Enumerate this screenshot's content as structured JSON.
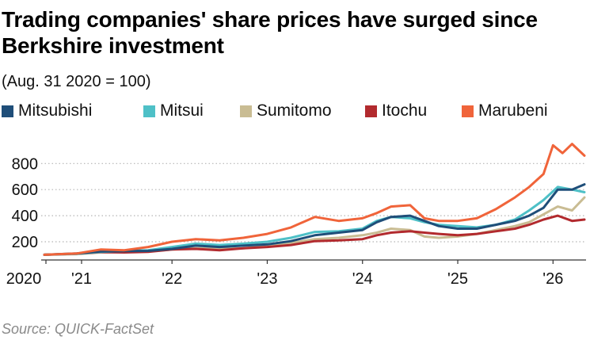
{
  "title": "Trading companies' share prices have surged since Berkshire investment",
  "subtitle": "(Aug. 31 2020 = 100)",
  "source": "Source: QUICK-FactSet",
  "chart_data": {
    "type": "line",
    "ylim": [
      60,
      960
    ],
    "yticks": [
      200,
      400,
      600,
      800
    ],
    "grid": "horizontal dotted",
    "legend_position": "top",
    "xlim": [
      2020.66,
      2026.33
    ],
    "xticks": [
      {
        "label": "2020",
        "x": 2020.0
      },
      {
        "label": "'21",
        "x": 2021.0
      },
      {
        "label": "'22",
        "x": 2022.0
      },
      {
        "label": "'23",
        "x": 2023.0
      },
      {
        "label": "'24",
        "x": 2024.0
      },
      {
        "label": "'25",
        "x": 2025.0
      },
      {
        "label": "'26",
        "x": 2026.0
      }
    ],
    "series": [
      {
        "name": "Mitsubishi",
        "color": "#1f4e79",
        "points": [
          [
            2020.66,
            100
          ],
          [
            2021.0,
            110
          ],
          [
            2021.25,
            125
          ],
          [
            2021.5,
            128
          ],
          [
            2021.75,
            130
          ],
          [
            2022.0,
            145
          ],
          [
            2022.25,
            170
          ],
          [
            2022.5,
            160
          ],
          [
            2022.75,
            170
          ],
          [
            2023.0,
            180
          ],
          [
            2023.25,
            205
          ],
          [
            2023.5,
            250
          ],
          [
            2023.75,
            270
          ],
          [
            2024.0,
            290
          ],
          [
            2024.15,
            350
          ],
          [
            2024.3,
            390
          ],
          [
            2024.5,
            400
          ],
          [
            2024.65,
            360
          ],
          [
            2024.8,
            320
          ],
          [
            2025.0,
            300
          ],
          [
            2025.2,
            300
          ],
          [
            2025.4,
            330
          ],
          [
            2025.6,
            360
          ],
          [
            2025.75,
            400
          ],
          [
            2025.9,
            460
          ],
          [
            2026.05,
            600
          ],
          [
            2026.2,
            600
          ],
          [
            2026.33,
            640
          ]
        ]
      },
      {
        "name": "Mitsui",
        "color": "#4ec0c7",
        "points": [
          [
            2020.66,
            100
          ],
          [
            2021.0,
            108
          ],
          [
            2021.25,
            122
          ],
          [
            2021.5,
            130
          ],
          [
            2021.75,
            135
          ],
          [
            2022.0,
            160
          ],
          [
            2022.25,
            185
          ],
          [
            2022.5,
            175
          ],
          [
            2022.75,
            185
          ],
          [
            2023.0,
            200
          ],
          [
            2023.25,
            230
          ],
          [
            2023.5,
            275
          ],
          [
            2023.75,
            280
          ],
          [
            2024.0,
            300
          ],
          [
            2024.15,
            360
          ],
          [
            2024.3,
            390
          ],
          [
            2024.5,
            380
          ],
          [
            2024.65,
            350
          ],
          [
            2024.8,
            330
          ],
          [
            2025.0,
            320
          ],
          [
            2025.2,
            310
          ],
          [
            2025.4,
            330
          ],
          [
            2025.6,
            370
          ],
          [
            2025.75,
            440
          ],
          [
            2025.9,
            520
          ],
          [
            2026.05,
            620
          ],
          [
            2026.2,
            600
          ],
          [
            2026.33,
            580
          ]
        ]
      },
      {
        "name": "Sumitomo",
        "color": "#c9bc93",
        "points": [
          [
            2020.66,
            100
          ],
          [
            2021.0,
            105
          ],
          [
            2021.25,
            118
          ],
          [
            2021.5,
            122
          ],
          [
            2021.75,
            125
          ],
          [
            2022.0,
            140
          ],
          [
            2022.25,
            150
          ],
          [
            2022.5,
            145
          ],
          [
            2022.75,
            150
          ],
          [
            2023.0,
            170
          ],
          [
            2023.25,
            190
          ],
          [
            2023.5,
            220
          ],
          [
            2023.75,
            230
          ],
          [
            2024.0,
            250
          ],
          [
            2024.15,
            270
          ],
          [
            2024.3,
            300
          ],
          [
            2024.5,
            290
          ],
          [
            2024.65,
            240
          ],
          [
            2024.8,
            230
          ],
          [
            2025.0,
            240
          ],
          [
            2025.2,
            260
          ],
          [
            2025.4,
            290
          ],
          [
            2025.6,
            320
          ],
          [
            2025.75,
            350
          ],
          [
            2025.9,
            410
          ],
          [
            2026.05,
            470
          ],
          [
            2026.2,
            440
          ],
          [
            2026.33,
            540
          ]
        ]
      },
      {
        "name": "Itochu",
        "color": "#b22a2e",
        "points": [
          [
            2020.66,
            100
          ],
          [
            2021.0,
            108
          ],
          [
            2021.25,
            120
          ],
          [
            2021.5,
            118
          ],
          [
            2021.75,
            122
          ],
          [
            2022.0,
            140
          ],
          [
            2022.25,
            145
          ],
          [
            2022.5,
            135
          ],
          [
            2022.75,
            150
          ],
          [
            2023.0,
            160
          ],
          [
            2023.25,
            175
          ],
          [
            2023.5,
            205
          ],
          [
            2023.75,
            210
          ],
          [
            2024.0,
            220
          ],
          [
            2024.15,
            250
          ],
          [
            2024.3,
            270
          ],
          [
            2024.5,
            280
          ],
          [
            2024.65,
            270
          ],
          [
            2024.8,
            260
          ],
          [
            2025.0,
            250
          ],
          [
            2025.2,
            260
          ],
          [
            2025.4,
            280
          ],
          [
            2025.6,
            300
          ],
          [
            2025.75,
            330
          ],
          [
            2025.9,
            370
          ],
          [
            2026.05,
            400
          ],
          [
            2026.2,
            360
          ],
          [
            2026.33,
            370
          ]
        ]
      },
      {
        "name": "Marubeni",
        "color": "#f0643a",
        "points": [
          [
            2020.66,
            100
          ],
          [
            2021.0,
            110
          ],
          [
            2021.25,
            140
          ],
          [
            2021.5,
            135
          ],
          [
            2021.75,
            160
          ],
          [
            2022.0,
            200
          ],
          [
            2022.25,
            220
          ],
          [
            2022.5,
            210
          ],
          [
            2022.75,
            230
          ],
          [
            2023.0,
            260
          ],
          [
            2023.25,
            310
          ],
          [
            2023.5,
            390
          ],
          [
            2023.75,
            360
          ],
          [
            2024.0,
            380
          ],
          [
            2024.15,
            420
          ],
          [
            2024.3,
            470
          ],
          [
            2024.5,
            480
          ],
          [
            2024.65,
            380
          ],
          [
            2024.8,
            360
          ],
          [
            2025.0,
            360
          ],
          [
            2025.2,
            380
          ],
          [
            2025.4,
            450
          ],
          [
            2025.6,
            540
          ],
          [
            2025.75,
            620
          ],
          [
            2025.9,
            720
          ],
          [
            2026.0,
            940
          ],
          [
            2026.1,
            880
          ],
          [
            2026.2,
            950
          ],
          [
            2026.33,
            860
          ]
        ]
      }
    ]
  }
}
